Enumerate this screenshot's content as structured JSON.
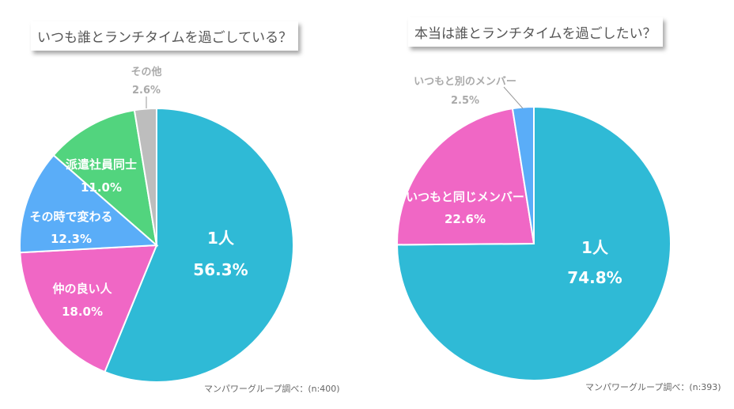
{
  "chart_data": [
    {
      "type": "pie",
      "title": "いつも誰とランチタイムを過ごしている？",
      "source": "マンパワーグループ調べ：(n:400)",
      "start": "12 o'clock, clockwise",
      "slices": [
        {
          "label": "1人",
          "value": 56.3,
          "display": "56.3%",
          "color": "#2FBAD6"
        },
        {
          "label": "仲の良い人",
          "value": 18.0,
          "display": "18.0%",
          "color": "#F067C5"
        },
        {
          "label": "その時で変わる",
          "value": 12.3,
          "display": "12.3%",
          "color": "#5AADF8"
        },
        {
          "label": "派遣社員同士",
          "value": 11.0,
          "display": "11.0%",
          "color": "#52D47E"
        },
        {
          "label": "その他",
          "value": 2.6,
          "display": "2.6%",
          "color": "#BDBDBD"
        }
      ]
    },
    {
      "type": "pie",
      "title": "本当は誰とランチタイムを過ごしたい？",
      "source": "マンパワーグループ調べ：(n:393)",
      "start": "12 o'clock, clockwise",
      "slices": [
        {
          "label": "1人",
          "value": 74.8,
          "display": "74.8%",
          "color": "#2FBAD6"
        },
        {
          "label": "いつもと同じメンバー",
          "value": 22.6,
          "display": "22.6%",
          "color": "#F067C5"
        },
        {
          "label": "いつもと別のメンバー",
          "value": 2.5,
          "display": "2.5%",
          "color": "#5AADF8"
        }
      ]
    }
  ]
}
